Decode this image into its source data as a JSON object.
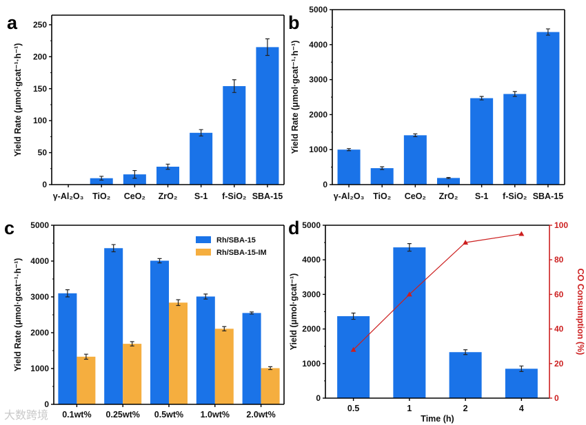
{
  "colors": {
    "blue": "#1a73e8",
    "orange": "#f5ae3f",
    "red": "#cc1f1f",
    "error": "#222222"
  },
  "watermark": "大数跨境",
  "chart_data": [
    {
      "panel": "a",
      "type": "bar",
      "categories": [
        "γ-Al₂O₃",
        "TiO₂",
        "CeO₂",
        "ZrO₂",
        "S-1",
        "f-SiO₂",
        "SBA-15"
      ],
      "series": [
        {
          "name": "Yield Rate",
          "values": [
            0,
            10,
            16,
            28,
            81,
            154,
            215
          ],
          "errors": [
            0,
            3,
            6,
            4,
            5,
            10,
            13
          ],
          "color": "#1a73e8"
        }
      ],
      "ylabel": "Yield Rate (μmol·gcat⁻¹·h⁻¹)",
      "xlabel": "",
      "ylim": [
        0,
        265
      ],
      "yticks": [
        0,
        50,
        100,
        150,
        200,
        250
      ]
    },
    {
      "panel": "b",
      "type": "bar",
      "categories": [
        "γ-Al₂O₃",
        "TiO₂",
        "CeO₂",
        "ZrO₂",
        "S-1",
        "f-SiO₂",
        "SBA-15"
      ],
      "series": [
        {
          "name": "Yield Rate",
          "values": [
            1000,
            470,
            1410,
            190,
            2470,
            2590,
            4360
          ],
          "errors": [
            30,
            40,
            40,
            15,
            50,
            70,
            90
          ],
          "color": "#1a73e8"
        }
      ],
      "ylabel": "Yield Rate (μmol·gcat⁻¹·h⁻¹)",
      "xlabel": "",
      "ylim": [
        0,
        5000
      ],
      "yticks": [
        0,
        1000,
        2000,
        3000,
        4000,
        5000
      ]
    },
    {
      "panel": "c",
      "type": "bar",
      "categories": [
        "0.1wt%",
        "0.25wt%",
        "0.5wt%",
        "1.0wt%",
        "2.0wt%"
      ],
      "series": [
        {
          "name": "Rh/SBA-15",
          "values": [
            3100,
            4360,
            4010,
            3010,
            2550
          ],
          "errors": [
            100,
            100,
            60,
            70,
            30
          ],
          "color": "#1a73e8"
        },
        {
          "name": "Rh/SBA-15-IM",
          "values": [
            1330,
            1690,
            2840,
            2110,
            1010
          ],
          "errors": [
            70,
            60,
            80,
            60,
            40
          ],
          "color": "#f5ae3f"
        }
      ],
      "legend": "top-right",
      "ylabel": "Yield Rate (μmol·gcat⁻¹·h⁻¹)",
      "xlabel": "",
      "ylim": [
        0,
        5000
      ],
      "yticks": [
        0,
        1000,
        2000,
        3000,
        4000,
        5000
      ]
    },
    {
      "panel": "d",
      "type": "bar+line",
      "categories": [
        "0.5",
        "1",
        "2",
        "4"
      ],
      "series": [
        {
          "name": "Yield",
          "values": [
            2370,
            4360,
            1330,
            850
          ],
          "errors": [
            90,
            110,
            70,
            80
          ],
          "color": "#1a73e8",
          "axis": "left"
        },
        {
          "name": "CO Consumption",
          "values": [
            28,
            60,
            90,
            95
          ],
          "color": "#cc1f1f",
          "axis": "right"
        }
      ],
      "ylabel": "Yield (μmol·gcat⁻¹)",
      "y2label": "CO Consumption (%)",
      "xlabel": "Time (h)",
      "ylim": [
        0,
        5000
      ],
      "yticks": [
        0,
        1000,
        2000,
        3000,
        4000,
        5000
      ],
      "y2lim": [
        0,
        100
      ],
      "y2ticks": [
        0,
        20,
        40,
        60,
        80,
        100
      ]
    }
  ]
}
